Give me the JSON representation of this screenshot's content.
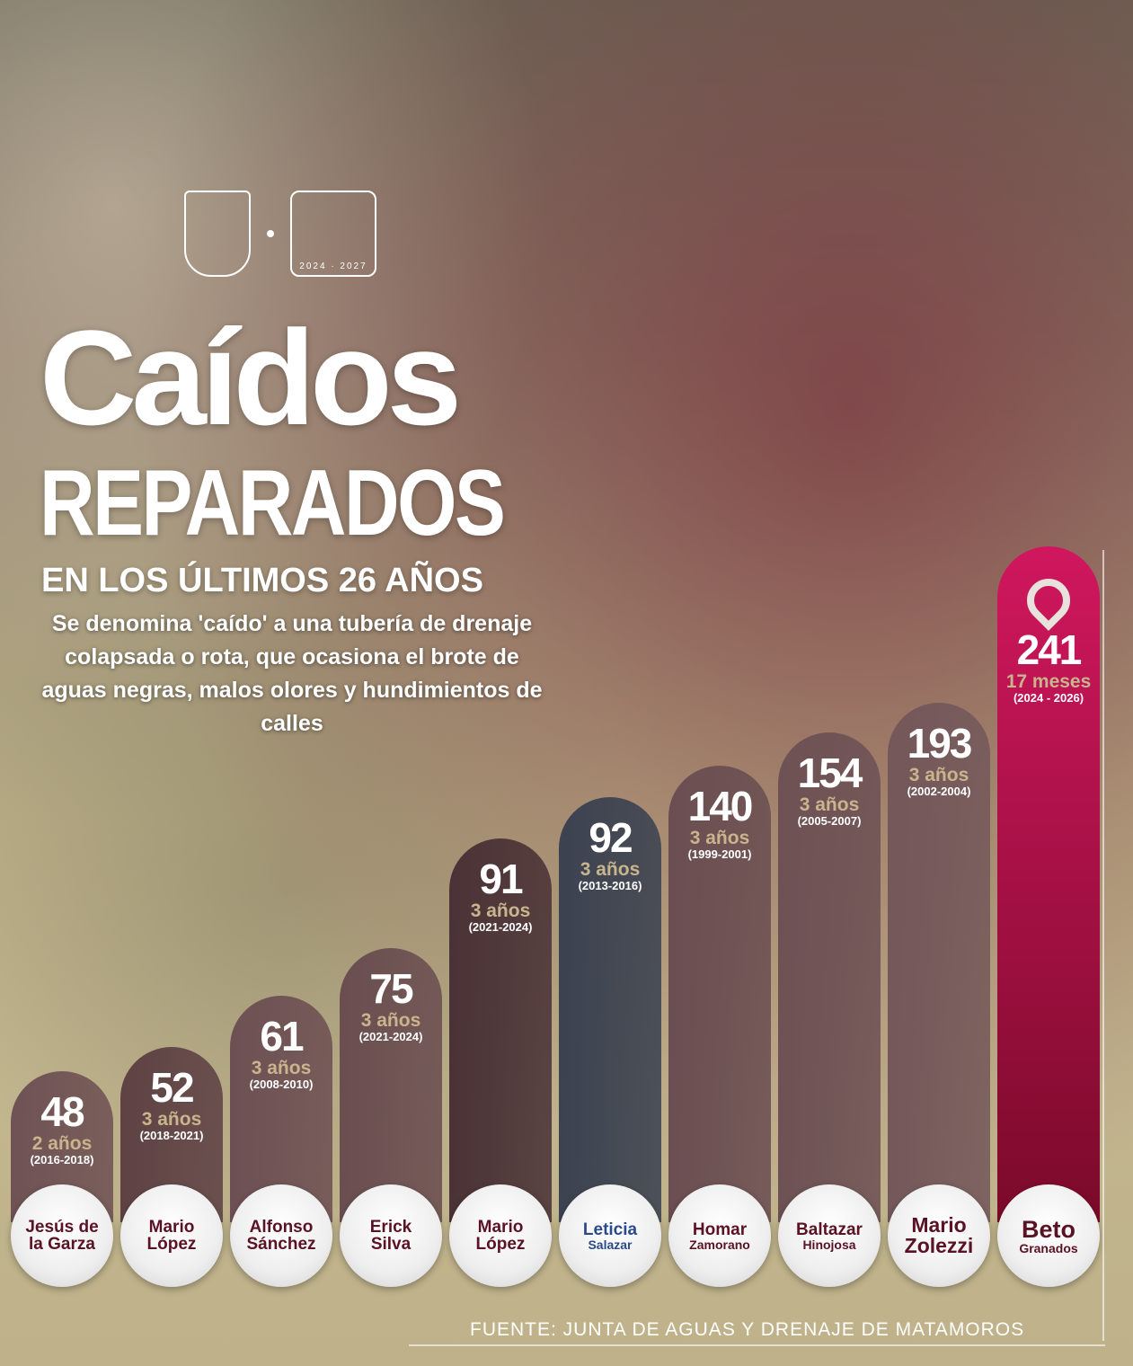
{
  "header": {
    "title_line1": "Caídos",
    "title_line2": "REPARADOS",
    "title_line3": "EN LOS ÚLTIMOS 26 AÑOS",
    "description": "Se denomina 'caído' a una tubería de drenaje colapsada o rota, que ocasiona el brote de aguas negras, malos olores y hundimientos de calles",
    "logo_years": "2024 · 2027"
  },
  "footer": {
    "source": "FUENTE: JUNTA DE AGUAS Y DRENAJE DE MATAMOROS"
  },
  "chart_data": {
    "type": "bar",
    "categories": [
      "Jesús de la Garza",
      "Mario López",
      "Alfonso Sánchez",
      "Erick Silva",
      "Mario López",
      "Leticia Salazar",
      "Homar Zamorano",
      "Baltazar Hinojosa",
      "Mario Zolezzi",
      "Beto Granados"
    ],
    "name_lines": [
      [
        "Jesús de",
        "la Garza"
      ],
      [
        "Mario",
        "López"
      ],
      [
        "Alfonso",
        "Sánchez"
      ],
      [
        "Erick",
        "Silva"
      ],
      [
        "Mario",
        "López"
      ],
      [
        "Leticia",
        "Salazar"
      ],
      [
        "Homar",
        "Zamorano"
      ],
      [
        "Baltazar",
        "Hinojosa"
      ],
      [
        "Mario",
        "Zolezzi"
      ],
      [
        "Beto",
        "Granados"
      ]
    ],
    "values": [
      48,
      52,
      61,
      75,
      91,
      92,
      140,
      154,
      193,
      241
    ],
    "durations": [
      "2 años",
      "3 años",
      "3 años",
      "3 años",
      "3 años",
      "3 años",
      "3 años",
      "3 años",
      "3 años",
      "17 meses"
    ],
    "periods": [
      "(2016-2018)",
      "(2018-2021)",
      "(2008-2010)",
      "(2021-2024)",
      "(2021-2024)",
      "(2013-2016)",
      "(1999-2001)",
      "(2005-2007)",
      "(2002-2004)",
      "(2024 - 2026)"
    ],
    "colors": [
      "#6f5254",
      "#5e4244",
      "#6d5053",
      "#6a4e50",
      "#4a3236",
      "#3b4250",
      "#6a4e51",
      "#6d5154",
      "#74585a",
      "#c8155a"
    ],
    "highlight_color": "#c8155a",
    "title": "Caídos REPARADOS EN LOS ÚLTIMOS 26 AÑOS"
  }
}
